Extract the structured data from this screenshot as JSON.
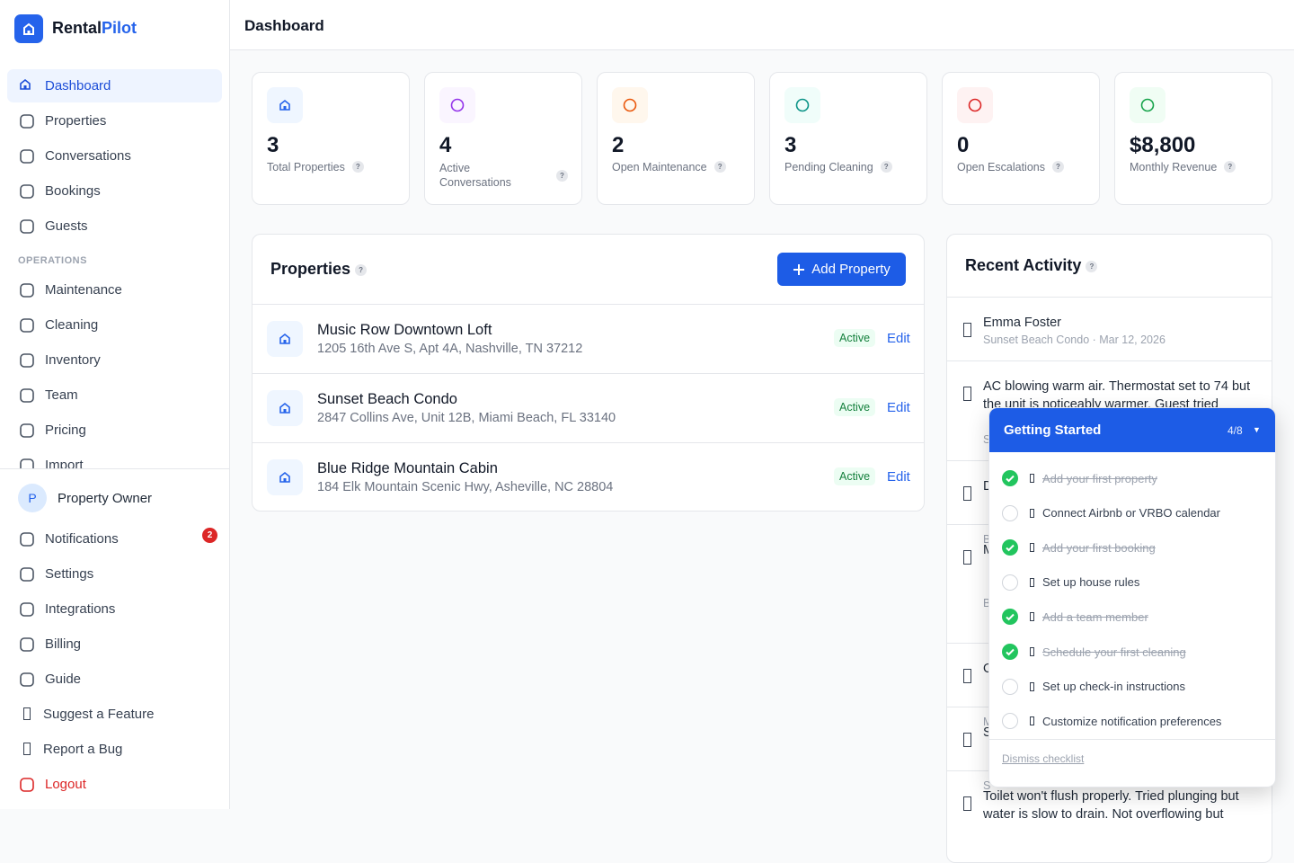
{
  "brand": {
    "name_a": "Rental",
    "name_b": "Pilot"
  },
  "nav": {
    "main": [
      "Dashboard",
      "Properties",
      "Conversations",
      "Bookings",
      "Guests"
    ],
    "section": "OPERATIONS",
    "ops": [
      "Maintenance",
      "Cleaning",
      "Inventory",
      "Team",
      "Pricing",
      "Import"
    ]
  },
  "user": {
    "initial": "P",
    "name": "Property Owner"
  },
  "footer_nav": [
    "Notifications",
    "Settings",
    "Integrations",
    "Billing",
    "Guide",
    "Suggest a Feature",
    "Report a Bug",
    "Logout"
  ],
  "notification_count": 2,
  "header": {
    "title": "Dashboard"
  },
  "help": "?",
  "stats": [
    {
      "value": 3,
      "label": "Total Properties"
    },
    {
      "value": 4,
      "label": "Active Conversations"
    },
    {
      "value": 2,
      "label": "Open Maintenance"
    },
    {
      "value": 3,
      "label": "Pending Cleaning"
    },
    {
      "value": 0,
      "label": "Open Escalations"
    },
    {
      "value": "$8,800",
      "label": "Monthly Revenue"
    }
  ],
  "properties": {
    "title": "Properties",
    "add_button": "Add Property",
    "items": [
      {
        "name": "Music Row Downtown Loft",
        "address": "1205 16th Ave S, Apt 4A, Nashville, TN 37212",
        "status": "Active",
        "action": "Edit"
      },
      {
        "name": "Sunset Beach Condo",
        "address": "2847 Collins Ave, Unit 12B, Miami Beach, FL 33140",
        "status": "Active",
        "action": "Edit"
      },
      {
        "name": "Blue Ridge Mountain Cabin",
        "address": "184 Elk Mountain Scenic Hwy, Asheville, NC 28804",
        "status": "Active",
        "action": "Edit"
      }
    ]
  },
  "activity": {
    "title": "Recent Activity",
    "items": [
      {
        "text": "Emma Foster",
        "meta": "Sunset Beach Condo · Mar 12, 2026"
      },
      {
        "text": "AC blowing warm air. Thermostat set to 74 but the unit is noticeably warmer. Guest tried",
        "meta": "S"
      },
      {
        "text": "D",
        "meta": "B"
      },
      {
        "text": "M",
        "meta": "B"
      },
      {
        "text": "O",
        "meta": "M"
      },
      {
        "text": "S",
        "meta": "S"
      },
      {
        "text": "Toilet won't flush properly. Tried plunging but water is slow to drain. Not overflowing but",
        "meta": ""
      }
    ]
  },
  "checklist": {
    "title": "Getting Started",
    "progress": "4/8",
    "toggle": "▼",
    "items": [
      {
        "text": "Add your first property",
        "done": true
      },
      {
        "text": "Connect Airbnb or VRBO calendar",
        "done": false
      },
      {
        "text": "Add your first booking",
        "done": true
      },
      {
        "text": "Set up house rules",
        "done": false
      },
      {
        "text": "Add a team member",
        "done": true
      },
      {
        "text": "Schedule your first cleaning",
        "done": true
      },
      {
        "text": "Set up check-in instructions",
        "done": false
      },
      {
        "text": "Customize notification preferences",
        "done": false
      }
    ],
    "dismiss": "Dismiss checklist"
  }
}
